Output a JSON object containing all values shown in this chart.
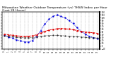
{
  "title": "Milwaukee Weather Outdoor Temperature (vs) THSW Index per Hour (Last 24 Hours)",
  "title_fontsize": 3.2,
  "background_color": "#ffffff",
  "grid_color": "#999999",
  "hours": [
    0,
    1,
    2,
    3,
    4,
    5,
    6,
    7,
    8,
    9,
    10,
    11,
    12,
    13,
    14,
    15,
    16,
    17,
    18,
    19,
    20,
    21,
    22,
    23
  ],
  "temp": [
    42,
    40,
    38,
    36,
    35,
    34,
    35,
    36,
    40,
    46,
    52,
    56,
    59,
    61,
    62,
    61,
    60,
    58,
    55,
    52,
    50,
    48,
    47,
    45
  ],
  "thsw": [
    38,
    32,
    28,
    22,
    18,
    15,
    14,
    20,
    35,
    55,
    78,
    95,
    105,
    110,
    105,
    100,
    90,
    80,
    65,
    52,
    42,
    35,
    30,
    27
  ],
  "dew": [
    36,
    35,
    33,
    31,
    30,
    29,
    29,
    30,
    32,
    34,
    36,
    37,
    38,
    38,
    37,
    36,
    35,
    34,
    33,
    32,
    31,
    30,
    29,
    28
  ],
  "temp_color": "#dd0000",
  "thsw_color": "#0000dd",
  "dew_color": "#111111",
  "ylim": [
    -10,
    120
  ],
  "xlim": [
    -0.5,
    23.5
  ],
  "ytick_interval": 10,
  "right_axis_labels": true
}
